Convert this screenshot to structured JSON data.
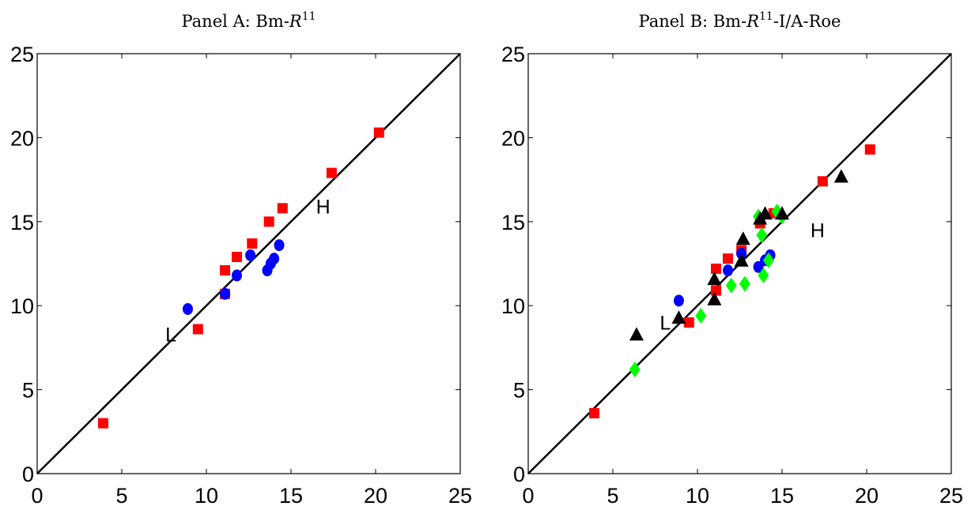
{
  "chart_data": [
    {
      "type": "scatter",
      "title": "Panel A: Bm-R11",
      "title_parts": {
        "prefix": "Panel A: Bm-",
        "var": "R",
        "sup": "11",
        "suffix": ""
      },
      "xlim": [
        0,
        25
      ],
      "ylim": [
        0,
        25
      ],
      "xticks": [
        0,
        5,
        10,
        15,
        20,
        25
      ],
      "yticks": [
        0,
        5,
        10,
        15,
        20,
        25
      ],
      "reference_line": {
        "from": [
          0,
          0
        ],
        "to": [
          25,
          25
        ],
        "color": "#000000"
      },
      "annotations": [
        {
          "text": "L",
          "x": 7.9,
          "y": 8.3
        },
        {
          "text": "H",
          "x": 16.9,
          "y": 15.9
        }
      ],
      "series": [
        {
          "marker": "square",
          "color": "#ff0000",
          "points": [
            [
              3.9,
              3.0
            ],
            [
              9.5,
              8.6
            ],
            [
              11.1,
              10.7
            ],
            [
              11.1,
              12.1
            ],
            [
              11.8,
              12.9
            ],
            [
              12.7,
              13.7
            ],
            [
              13.7,
              15.0
            ],
            [
              14.5,
              15.8
            ],
            [
              17.4,
              17.9
            ],
            [
              20.2,
              20.3
            ]
          ]
        },
        {
          "marker": "circle",
          "color": "#0000ff",
          "points": [
            [
              8.9,
              9.8
            ],
            [
              11.1,
              10.7
            ],
            [
              11.8,
              11.8
            ],
            [
              12.6,
              13.0
            ],
            [
              13.6,
              12.1
            ],
            [
              13.8,
              12.5
            ],
            [
              14.0,
              12.8
            ],
            [
              14.3,
              13.6
            ]
          ]
        }
      ]
    },
    {
      "type": "scatter",
      "title": "Panel B: Bm-R11-I/A-Roe",
      "title_parts": {
        "prefix": "Panel B: Bm-",
        "var": "R",
        "sup": "11",
        "suffix": "-I/A-Roe"
      },
      "xlim": [
        0,
        25
      ],
      "ylim": [
        0,
        25
      ],
      "xticks": [
        0,
        5,
        10,
        15,
        20,
        25
      ],
      "yticks": [
        0,
        5,
        10,
        15,
        20,
        25
      ],
      "reference_line": {
        "from": [
          0,
          0
        ],
        "to": [
          25,
          25
        ],
        "color": "#000000"
      },
      "annotations": [
        {
          "text": "L",
          "x": 8.1,
          "y": 9.0
        },
        {
          "text": "H",
          "x": 17.1,
          "y": 14.5
        }
      ],
      "series": [
        {
          "marker": "square",
          "color": "#ff0000",
          "points": [
            [
              3.9,
              3.6
            ],
            [
              9.5,
              9.0
            ],
            [
              11.1,
              10.9
            ],
            [
              11.1,
              12.2
            ],
            [
              11.8,
              12.8
            ],
            [
              12.6,
              13.3
            ],
            [
              13.7,
              14.9
            ],
            [
              14.5,
              15.5
            ],
            [
              17.4,
              17.4
            ],
            [
              20.2,
              19.3
            ]
          ]
        },
        {
          "marker": "circle",
          "color": "#0000ff",
          "points": [
            [
              8.9,
              10.3
            ],
            [
              11.8,
              12.1
            ],
            [
              12.6,
              13.1
            ],
            [
              13.6,
              12.3
            ],
            [
              14.0,
              12.7
            ],
            [
              14.3,
              13.0
            ]
          ]
        },
        {
          "marker": "diamond",
          "color": "#00ff00",
          "points": [
            [
              6.3,
              6.2
            ],
            [
              10.2,
              9.4
            ],
            [
              12.0,
              11.2
            ],
            [
              12.8,
              11.3
            ],
            [
              13.6,
              15.3
            ],
            [
              13.8,
              14.2
            ],
            [
              13.9,
              11.8
            ],
            [
              14.2,
              12.7
            ],
            [
              14.7,
              15.6
            ],
            [
              15.0,
              15.3
            ]
          ]
        },
        {
          "marker": "triangle",
          "color": "#000000",
          "points": [
            [
              6.4,
              8.3
            ],
            [
              8.9,
              9.3
            ],
            [
              11.0,
              10.4
            ],
            [
              11.0,
              11.6
            ],
            [
              12.6,
              12.7
            ],
            [
              12.7,
              14.0
            ],
            [
              13.7,
              15.2
            ],
            [
              14.0,
              15.5
            ],
            [
              15.0,
              15.5
            ],
            [
              18.5,
              17.7
            ]
          ]
        }
      ]
    }
  ]
}
